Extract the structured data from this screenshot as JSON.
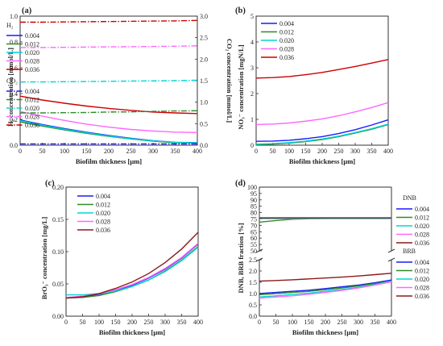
{
  "chart_data": [
    {
      "panel": "(a)",
      "type": "line",
      "xlabel": "Biofilm thickness [μm]",
      "ylabel": "H₂ concentration [mmol/L]",
      "y2label": "CO₂ concentration [mmol/L]",
      "xlim": [
        0,
        400
      ],
      "xticks": [
        "0",
        "50",
        "100",
        "150",
        "200",
        "250",
        "300",
        "350",
        "400"
      ],
      "ylim": [
        0,
        1.0
      ],
      "yticks": [
        "0.0",
        "0.2",
        "0.4",
        "0.6",
        "0.8",
        "1.0"
      ],
      "y2lim": [
        0,
        3.0
      ],
      "y2ticks": [
        "0.0",
        "0.5",
        "1.0",
        "1.5",
        "2.0",
        "2.5",
        "3.0"
      ],
      "legend_groups": [
        {
          "title": "H₂"
        },
        {
          "title": "CO₂"
        }
      ],
      "x": [
        0,
        50,
        100,
        150,
        200,
        250,
        300,
        350,
        400
      ],
      "series": [
        {
          "name": "0.004",
          "group": "H₂",
          "axis": "left",
          "color": "#1a1aff",
          "dash": "solid",
          "values": [
            0.195,
            0.16,
            0.128,
            0.1,
            0.075,
            0.053,
            0.035,
            0.022,
            0.02
          ]
        },
        {
          "name": "0.012",
          "group": "H₂",
          "axis": "left",
          "color": "#2e8b2e",
          "dash": "solid",
          "values": [
            0.18,
            0.148,
            0.118,
            0.092,
            0.068,
            0.048,
            0.031,
            0.019,
            0.017
          ]
        },
        {
          "name": "0.020",
          "group": "H₂",
          "axis": "left",
          "color": "#00d5d5",
          "dash": "solid",
          "values": [
            0.19,
            0.155,
            0.124,
            0.096,
            0.071,
            0.05,
            0.033,
            0.021,
            0.018
          ]
        },
        {
          "name": "0.028",
          "group": "H₂",
          "axis": "left",
          "color": "#ff66ff",
          "dash": "solid",
          "values": [
            0.26,
            0.225,
            0.192,
            0.163,
            0.14,
            0.122,
            0.11,
            0.101,
            0.098
          ]
        },
        {
          "name": "0.036",
          "group": "H₂",
          "axis": "left",
          "color": "#cc0000",
          "dash": "solid",
          "values": [
            0.38,
            0.35,
            0.325,
            0.303,
            0.285,
            0.27,
            0.257,
            0.25,
            0.245
          ]
        },
        {
          "name": "0.004",
          "group": "CO₂",
          "axis": "right",
          "color": "#1a1aff",
          "dash": "dashdot",
          "values": [
            0.03,
            0.03,
            0.03,
            0.03,
            0.03,
            0.03,
            0.03,
            0.03,
            0.03
          ]
        },
        {
          "name": "0.012",
          "group": "CO₂",
          "axis": "right",
          "color": "#2e8b2e",
          "dash": "dashdot",
          "values": [
            0.75,
            0.75,
            0.755,
            0.76,
            0.77,
            0.775,
            0.785,
            0.795,
            0.8
          ]
        },
        {
          "name": "0.020",
          "group": "CO₂",
          "axis": "right",
          "color": "#00d5d5",
          "dash": "dashdot",
          "values": [
            1.47,
            1.47,
            1.475,
            1.48,
            1.485,
            1.49,
            1.495,
            1.5,
            1.51
          ]
        },
        {
          "name": "0.028",
          "group": "CO₂",
          "axis": "right",
          "color": "#ff66ff",
          "dash": "dashdot",
          "values": [
            2.27,
            2.27,
            2.275,
            2.28,
            2.285,
            2.29,
            2.295,
            2.3,
            2.31
          ]
        },
        {
          "name": "0.036",
          "group": "CO₂",
          "axis": "right",
          "color": "#cc0000",
          "dash": "dashdot",
          "values": [
            2.86,
            2.86,
            2.865,
            2.87,
            2.875,
            2.88,
            2.885,
            2.89,
            2.9
          ]
        }
      ]
    },
    {
      "panel": "(b)",
      "type": "line",
      "xlabel": "Biofilm thickness [μm]",
      "ylabel": "NO₃⁻ concentration [mgN/L]",
      "xlim": [
        0,
        400
      ],
      "xticks": [
        "0",
        "50",
        "100",
        "150",
        "200",
        "250",
        "300",
        "350",
        "400"
      ],
      "ylim": [
        0,
        5
      ],
      "yticks": [
        "0",
        "1",
        "2",
        "3",
        "4",
        "5"
      ],
      "x": [
        0,
        50,
        100,
        150,
        200,
        250,
        300,
        350,
        400
      ],
      "series": [
        {
          "name": "0.004",
          "color": "#1a1aff",
          "values": [
            0.15,
            0.16,
            0.19,
            0.25,
            0.33,
            0.45,
            0.6,
            0.78,
            0.98
          ]
        },
        {
          "name": "0.012",
          "color": "#2e8b2e",
          "values": [
            0.02,
            0.04,
            0.08,
            0.14,
            0.22,
            0.33,
            0.47,
            0.62,
            0.8
          ]
        },
        {
          "name": "0.020",
          "color": "#00d5d5",
          "values": [
            0.04,
            0.06,
            0.1,
            0.16,
            0.24,
            0.35,
            0.49,
            0.64,
            0.82
          ]
        },
        {
          "name": "0.028",
          "color": "#ff66ff",
          "values": [
            0.8,
            0.82,
            0.86,
            0.93,
            1.02,
            1.14,
            1.29,
            1.46,
            1.65
          ]
        },
        {
          "name": "0.036",
          "color": "#cc0000",
          "values": [
            2.6,
            2.62,
            2.66,
            2.73,
            2.82,
            2.93,
            3.05,
            3.18,
            3.32
          ]
        }
      ]
    },
    {
      "panel": "(c)",
      "type": "line",
      "xlabel": "Biofilm thickness [μm]",
      "ylabel": "BrO₃⁻ concentration [mg/L]",
      "xlim": [
        0,
        400
      ],
      "xticks": [
        "0",
        "50",
        "100",
        "150",
        "200",
        "250",
        "300",
        "350",
        "400"
      ],
      "ylim": [
        0,
        0.2
      ],
      "yticks": [
        "0.00",
        "0.05",
        "0.10",
        "0.15",
        "0.20"
      ],
      "x": [
        0,
        50,
        100,
        150,
        200,
        250,
        300,
        350,
        400
      ],
      "series": [
        {
          "name": "0.004",
          "color": "#1a1aff",
          "values": [
            0.028,
            0.03,
            0.034,
            0.04,
            0.048,
            0.059,
            0.073,
            0.09,
            0.112
          ]
        },
        {
          "name": "0.012",
          "color": "#2e8b2e",
          "values": [
            0.028,
            0.029,
            0.032,
            0.038,
            0.046,
            0.056,
            0.07,
            0.087,
            0.108
          ]
        },
        {
          "name": "0.020",
          "color": "#00d5d5",
          "values": [
            0.033,
            0.033,
            0.035,
            0.039,
            0.046,
            0.056,
            0.069,
            0.086,
            0.107
          ]
        },
        {
          "name": "0.028",
          "color": "#ff66ff",
          "values": [
            0.029,
            0.031,
            0.035,
            0.041,
            0.049,
            0.06,
            0.074,
            0.091,
            0.113
          ]
        },
        {
          "name": "0.036",
          "color": "#8b1a1a",
          "values": [
            0.028,
            0.03,
            0.035,
            0.043,
            0.053,
            0.066,
            0.083,
            0.104,
            0.13
          ]
        }
      ]
    },
    {
      "panel": "(d)",
      "type": "line",
      "xlabel": "Biofilm thickness [μm]",
      "ylabel": "DNB, BRB fraction [%]",
      "xlim": [
        0,
        400
      ],
      "xticks": [
        "0",
        "50",
        "100",
        "150",
        "200",
        "250",
        "300",
        "350",
        "400"
      ],
      "broken_y_axis": true,
      "ylim_upper": [
        50,
        100
      ],
      "yticks_upper": [
        "50",
        "55",
        "60",
        "65",
        "70",
        "75",
        "80",
        "85",
        "90",
        "95",
        "100"
      ],
      "ylim_lower": [
        0,
        2.5
      ],
      "yticks_lower": [
        "0.0",
        "0.5",
        "1.0",
        "1.5",
        "2.0",
        "2.5"
      ],
      "legend_groups": [
        {
          "title": "DNB"
        },
        {
          "title": "BRB"
        }
      ],
      "x": [
        0,
        50,
        100,
        150,
        200,
        250,
        300,
        350,
        400
      ],
      "series": [
        {
          "name": "0.004",
          "group": "DNB",
          "color": "#1a1aff",
          "values": [
            75.6,
            75.6,
            75.6,
            75.6,
            75.6,
            75.6,
            75.6,
            75.6,
            75.6
          ]
        },
        {
          "name": "0.012",
          "group": "DNB",
          "color": "#2e8b2e",
          "values": [
            72.5,
            73.8,
            74.8,
            75.2,
            75.4,
            75.5,
            75.5,
            75.5,
            75.5
          ]
        },
        {
          "name": "0.020",
          "group": "DNB",
          "color": "#00d5d5",
          "values": [
            75.3,
            75.3,
            75.3,
            75.3,
            75.3,
            75.3,
            75.3,
            75.3,
            75.3
          ]
        },
        {
          "name": "0.028",
          "group": "DNB",
          "color": "#ff66ff",
          "values": [
            76.0,
            76.0,
            76.0,
            76.0,
            76.0,
            76.0,
            76.0,
            76.0,
            76.0
          ]
        },
        {
          "name": "0.036",
          "group": "DNB",
          "color": "#8b1a1a",
          "values": [
            75.8,
            75.8,
            75.8,
            75.8,
            75.8,
            75.8,
            75.8,
            75.8,
            75.8
          ]
        },
        {
          "name": "0.004",
          "group": "BRB",
          "color": "#1a1aff",
          "values": [
            1.0,
            1.05,
            1.1,
            1.15,
            1.22,
            1.3,
            1.38,
            1.48,
            1.6
          ]
        },
        {
          "name": "0.012",
          "group": "BRB",
          "color": "#2e8b2e",
          "values": [
            0.95,
            1.0,
            1.05,
            1.1,
            1.17,
            1.25,
            1.34,
            1.44,
            1.55
          ]
        },
        {
          "name": "0.020",
          "group": "BRB",
          "color": "#00d5d5",
          "values": [
            0.85,
            0.9,
            0.96,
            1.02,
            1.1,
            1.18,
            1.28,
            1.4,
            1.55
          ]
        },
        {
          "name": "0.028",
          "group": "BRB",
          "color": "#ff66ff",
          "values": [
            0.8,
            0.85,
            0.9,
            0.97,
            1.05,
            1.14,
            1.25,
            1.38,
            1.52
          ]
        },
        {
          "name": "0.036",
          "group": "BRB",
          "color": "#8b1a1a",
          "values": [
            1.55,
            1.58,
            1.61,
            1.65,
            1.69,
            1.73,
            1.78,
            1.84,
            1.9
          ]
        }
      ]
    }
  ]
}
